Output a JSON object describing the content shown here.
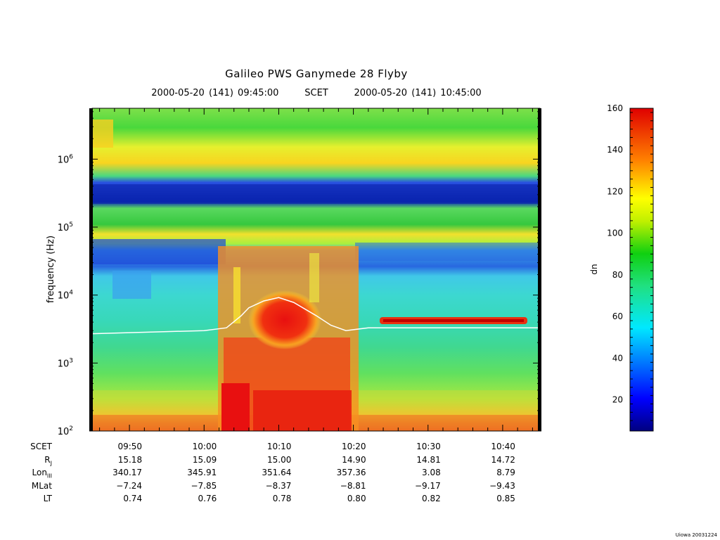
{
  "title": "Galileo PWS Ganymede 28 Flyby",
  "subtitle": {
    "start": "2000-05-20 (141) 09:45:00",
    "mid": "SCET",
    "end": "2000-05-20 (141) 10:45:00"
  },
  "credit": "Uiowa 20031224",
  "chart_data": {
    "type": "heatmap",
    "title": "Galileo PWS Ganymede 28 Flyby",
    "xlabel": "SCET",
    "ylabel": "frequency (Hz)",
    "x_range": [
      "09:45:00",
      "10:45:00"
    ],
    "y_scale": "log",
    "y_range": [
      100,
      5600000
    ],
    "y_ticks": [
      {
        "base": "10",
        "exp": "2"
      },
      {
        "base": "10",
        "exp": "3"
      },
      {
        "base": "10",
        "exp": "4"
      },
      {
        "base": "10",
        "exp": "5"
      },
      {
        "base": "10",
        "exp": "6"
      }
    ],
    "x_ticks": [
      "09:50",
      "10:00",
      "10:10",
      "10:20",
      "10:30",
      "10:40"
    ],
    "colorbar": {
      "label": "dn",
      "range": [
        5,
        160
      ],
      "ticks": [
        "20",
        "40",
        "60",
        "80",
        "100",
        "120",
        "140",
        "160"
      ]
    },
    "overlay_line": {
      "description_color": "#ffffff",
      "times": [
        "09:45",
        "09:50",
        "10:00",
        "10:03",
        "10:05",
        "10:06",
        "10:08",
        "10:10",
        "10:12",
        "10:15",
        "10:17",
        "10:19",
        "10:22",
        "10:30",
        "10:40",
        "10:45"
      ],
      "freq_hz": [
        2700,
        2800,
        3000,
        3300,
        5000,
        6500,
        8200,
        9200,
        7800,
        5000,
        3600,
        3000,
        3300,
        3300,
        3300,
        3300
      ]
    },
    "ephemeris": {
      "rows": [
        {
          "label": "SCET",
          "sub": "",
          "values": [
            "09:50",
            "10:00",
            "10:10",
            "10:20",
            "10:30",
            "10:40"
          ]
        },
        {
          "label": "R",
          "sub": "J",
          "values": [
            "15.18",
            "15.09",
            "15.00",
            "14.90",
            "14.81",
            "14.72"
          ]
        },
        {
          "label": "Lon",
          "sub": "III",
          "values": [
            "340.17",
            "345.91",
            "351.64",
            "357.36",
            "3.08",
            "8.79"
          ]
        },
        {
          "label": "MLat",
          "sub": "",
          "values": [
            "−7.24",
            "−7.85",
            "−8.37",
            "−8.81",
            "−9.17",
            "−9.43"
          ]
        },
        {
          "label": "LT",
          "sub": "",
          "values": [
            "0.74",
            "0.76",
            "0.78",
            "0.80",
            "0.82",
            "0.85"
          ]
        }
      ]
    }
  }
}
